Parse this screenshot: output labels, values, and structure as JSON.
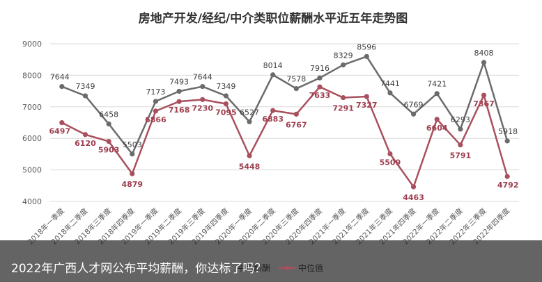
{
  "chart_data": {
    "type": "line",
    "title": "房地产开发/经纪/中介类职位薪酬水平近五年走势图",
    "xlabel": "",
    "ylabel": "",
    "ylim": [
      4000,
      9000
    ],
    "yticks": [
      4000,
      5000,
      6000,
      7000,
      8000,
      9000
    ],
    "grid": true,
    "legend_position": "bottom",
    "categories": [
      "2018年一季度",
      "2018年二季度",
      "2018年三季度",
      "2018年四季度",
      "2019年一季度",
      "2019年二季度",
      "2019年三季度",
      "2019年四季度",
      "2020年一季度",
      "2020年二季度",
      "2020年三季度",
      "2020年四季度",
      "2021年一季度",
      "2021年二季度",
      "2021年三季度",
      "2021年四季度",
      "2022年一季度",
      "2022年二季度",
      "2022年三季度",
      "2022年四季度"
    ],
    "series": [
      {
        "name": "平均薪酬",
        "color": "#6b6b6b",
        "values": [
          7644,
          7349,
          6458,
          5503,
          7173,
          7493,
          7644,
          7349,
          6527,
          8014,
          7578,
          7916,
          8329,
          8596,
          7441,
          6769,
          7421,
          6293,
          8408,
          5918
        ]
      },
      {
        "name": "中位值",
        "color": "#a8505e",
        "values": [
          6497,
          6120,
          5903,
          4879,
          6866,
          7168,
          7230,
          7095,
          5448,
          6883,
          6767,
          7633,
          7291,
          7327,
          5509,
          4463,
          6604,
          5791,
          7367,
          4792
        ]
      }
    ]
  },
  "caption": "2022年广西人才网公布平均薪酬，你达标了吗？"
}
